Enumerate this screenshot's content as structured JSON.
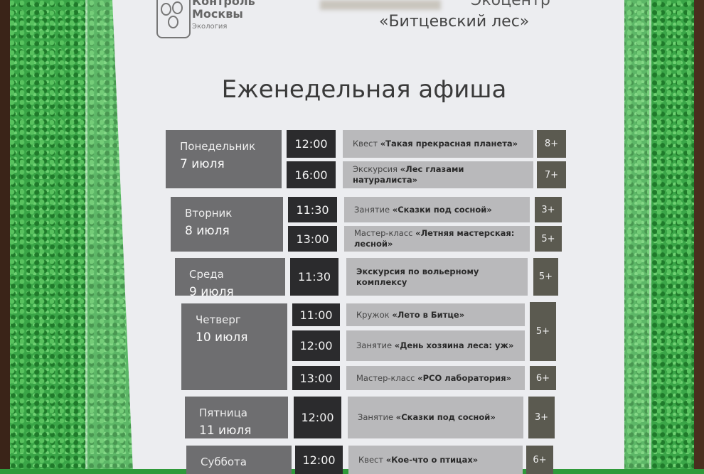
{
  "header": {
    "brand_line1": "Контроль",
    "brand_line2": "Москвы",
    "brand_line3": "Экология",
    "center_line1": "Экоцентр",
    "center_line2": "«Битцевский лес»"
  },
  "title": "Еженедельная афиша",
  "colors": {
    "frame_green": "#3aa547",
    "day_block": "#6e6e70",
    "time_block": "#2b2b2d",
    "event_block": "#b9b9bb",
    "age_block": "#5b5a50"
  },
  "days": [
    {
      "day": "Понедельник",
      "date": "7 июля",
      "events": [
        {
          "time": "12:00",
          "type": "Квест",
          "name": "«Такая прекрасная планета»",
          "age": "8+"
        },
        {
          "time": "16:00",
          "type": "Экскурсия",
          "name": "«Лес глазами натуралиста»",
          "age": "7+"
        }
      ]
    },
    {
      "day": "Вторник",
      "date": "8 июля",
      "events": [
        {
          "time": "11:30",
          "type": "Занятие",
          "name": "«Сказки под сосной»",
          "age": "3+"
        },
        {
          "time": "13:00",
          "type": "Мастер-класс",
          "name": "«Летняя мастерская: лесной»",
          "age": "5+"
        }
      ]
    },
    {
      "day": "Среда",
      "date": "9 июля",
      "events": [
        {
          "time": "11:30",
          "type": "",
          "name": "Экскурсия по вольерному комплексу",
          "age": "5+"
        }
      ]
    },
    {
      "day": "Четверг",
      "date": "10 июля",
      "events": [
        {
          "time": "11:00",
          "type": "Кружок",
          "name": "«Лето в Битце»",
          "age": "5+"
        },
        {
          "time": "12:00",
          "type": "Занятие",
          "name": "«День хозяина леса: уж»",
          "age": ""
        },
        {
          "time": "13:00",
          "type": "Мастер-класс",
          "name": "«PCO лаборатория»",
          "age": "6+"
        }
      ]
    },
    {
      "day": "Пятница",
      "date": "11 июля",
      "events": [
        {
          "time": "12:00",
          "type": "Занятие",
          "name": "«Сказки под сосной»",
          "age": "3+"
        }
      ]
    },
    {
      "day": "Суббота",
      "date": "",
      "events": [
        {
          "time": "12:00",
          "type": "Квест",
          "name": "«Кое-что о птицах»",
          "age": "6+"
        }
      ]
    }
  ]
}
